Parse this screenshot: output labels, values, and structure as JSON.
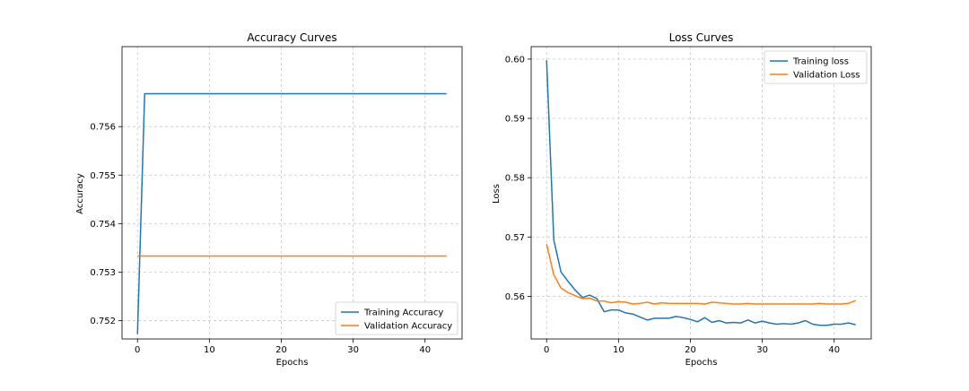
{
  "chart_data": [
    {
      "type": "line",
      "title": "Accuracy Curves",
      "xlabel": "Epochs",
      "ylabel": "Accuracy",
      "xlim": [
        -2.15,
        45.15
      ],
      "ylim": [
        0.75162,
        0.75765
      ],
      "xticks": [
        0,
        10,
        20,
        30,
        40
      ],
      "xtick_labels": [
        "0",
        "10",
        "20",
        "30",
        "40"
      ],
      "yticks": [
        0.752,
        0.753,
        0.754,
        0.755,
        0.756
      ],
      "ytick_labels": [
        "0.752",
        "0.753",
        "0.754",
        "0.755",
        "0.756"
      ],
      "grid": true,
      "legend_position": "lower-right",
      "series": [
        {
          "name": "Training Accuracy",
          "color": "#1f77b4",
          "x": [
            0,
            1,
            2,
            3,
            4,
            5,
            6,
            7,
            8,
            9,
            10,
            11,
            12,
            13,
            14,
            15,
            16,
            17,
            18,
            19,
            20,
            21,
            22,
            23,
            24,
            25,
            26,
            27,
            28,
            29,
            30,
            31,
            32,
            33,
            34,
            35,
            36,
            37,
            38,
            39,
            40,
            41,
            42,
            43
          ],
          "y": [
            0.75172,
            0.75668,
            0.75668,
            0.75668,
            0.75668,
            0.75668,
            0.75668,
            0.75668,
            0.75668,
            0.75668,
            0.75668,
            0.75668,
            0.75668,
            0.75668,
            0.75668,
            0.75668,
            0.75668,
            0.75668,
            0.75668,
            0.75668,
            0.75668,
            0.75668,
            0.75668,
            0.75668,
            0.75668,
            0.75668,
            0.75668,
            0.75668,
            0.75668,
            0.75668,
            0.75668,
            0.75668,
            0.75668,
            0.75668,
            0.75668,
            0.75668,
            0.75668,
            0.75668,
            0.75668,
            0.75668,
            0.75668,
            0.75668,
            0.75668,
            0.75668
          ]
        },
        {
          "name": "Validation Accuracy",
          "color": "#ff7f0e",
          "x": [
            0,
            1,
            2,
            3,
            4,
            5,
            6,
            7,
            8,
            9,
            10,
            11,
            12,
            13,
            14,
            15,
            16,
            17,
            18,
            19,
            20,
            21,
            22,
            23,
            24,
            25,
            26,
            27,
            28,
            29,
            30,
            31,
            32,
            33,
            34,
            35,
            36,
            37,
            38,
            39,
            40,
            41,
            42,
            43
          ],
          "y": [
            0.75333,
            0.75333,
            0.75333,
            0.75333,
            0.75333,
            0.75333,
            0.75333,
            0.75333,
            0.75333,
            0.75333,
            0.75333,
            0.75333,
            0.75333,
            0.75333,
            0.75333,
            0.75333,
            0.75333,
            0.75333,
            0.75333,
            0.75333,
            0.75333,
            0.75333,
            0.75333,
            0.75333,
            0.75333,
            0.75333,
            0.75333,
            0.75333,
            0.75333,
            0.75333,
            0.75333,
            0.75333,
            0.75333,
            0.75333,
            0.75333,
            0.75333,
            0.75333,
            0.75333,
            0.75333,
            0.75333,
            0.75333,
            0.75333,
            0.75333,
            0.75333
          ]
        }
      ]
    },
    {
      "type": "line",
      "title": "Loss Curves",
      "xlabel": "Epochs",
      "ylabel": "Loss",
      "xlim": [
        -2.15,
        45.15
      ],
      "ylim": [
        0.5528,
        0.6021
      ],
      "xticks": [
        0,
        10,
        20,
        30,
        40
      ],
      "xtick_labels": [
        "0",
        "10",
        "20",
        "30",
        "40"
      ],
      "yticks": [
        0.56,
        0.57,
        0.58,
        0.59,
        0.6
      ],
      "ytick_labels": [
        "0.56",
        "0.57",
        "0.58",
        "0.59",
        "0.60"
      ],
      "grid": true,
      "legend_position": "upper-right",
      "series": [
        {
          "name": "Training loss",
          "color": "#1f77b4",
          "x": [
            0,
            1,
            2,
            3,
            4,
            5,
            6,
            7,
            8,
            9,
            10,
            11,
            12,
            13,
            14,
            15,
            16,
            17,
            18,
            19,
            20,
            21,
            22,
            23,
            24,
            25,
            26,
            27,
            28,
            29,
            30,
            31,
            32,
            33,
            34,
            35,
            36,
            37,
            38,
            39,
            40,
            41,
            42,
            43
          ],
          "y": [
            0.5998,
            0.5695,
            0.5641,
            0.5625,
            0.561,
            0.5598,
            0.5602,
            0.5596,
            0.5574,
            0.5577,
            0.5577,
            0.5572,
            0.557,
            0.5565,
            0.556,
            0.5563,
            0.5563,
            0.5563,
            0.5566,
            0.5564,
            0.5561,
            0.5557,
            0.5564,
            0.5556,
            0.5559,
            0.5555,
            0.5556,
            0.5555,
            0.556,
            0.5555,
            0.5558,
            0.5555,
            0.5553,
            0.5554,
            0.5553,
            0.5555,
            0.5559,
            0.5553,
            0.5551,
            0.5551,
            0.5553,
            0.5553,
            0.5555,
            0.5552
          ]
        },
        {
          "name": "Validation Loss",
          "color": "#ff7f0e",
          "x": [
            0,
            1,
            2,
            3,
            4,
            5,
            6,
            7,
            8,
            9,
            10,
            11,
            12,
            13,
            14,
            15,
            16,
            17,
            18,
            19,
            20,
            21,
            22,
            23,
            24,
            25,
            26,
            27,
            28,
            29,
            30,
            31,
            32,
            33,
            34,
            35,
            36,
            37,
            38,
            39,
            40,
            41,
            42,
            43
          ],
          "y": [
            0.5688,
            0.5636,
            0.5614,
            0.5606,
            0.5601,
            0.5596,
            0.5597,
            0.5592,
            0.5592,
            0.5589,
            0.5591,
            0.559,
            0.5587,
            0.5588,
            0.559,
            0.5587,
            0.5589,
            0.5588,
            0.5588,
            0.5588,
            0.5588,
            0.5588,
            0.5587,
            0.559,
            0.5589,
            0.5588,
            0.5587,
            0.5587,
            0.5588,
            0.5587,
            0.5587,
            0.5587,
            0.5587,
            0.5587,
            0.5587,
            0.5587,
            0.5587,
            0.5587,
            0.5588,
            0.5587,
            0.5587,
            0.5587,
            0.5588,
            0.5593
          ]
        }
      ]
    }
  ]
}
